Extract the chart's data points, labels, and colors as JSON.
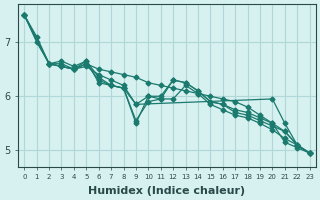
{
  "background_color": "#d7f0f0",
  "grid_color": "#b0d8d8",
  "line_color": "#1a7a6e",
  "xlabel": "Humidex (Indice chaleur)",
  "xlabel_fontsize": 8,
  "yticks": [
    5,
    6,
    7
  ],
  "ylim": [
    4.7,
    7.7
  ],
  "xlim": [
    -0.5,
    23.5
  ],
  "xtick_labels": [
    "0",
    "1",
    "2",
    "3",
    "4",
    "5",
    "6",
    "7",
    "8",
    "9",
    "10",
    "11",
    "12",
    "13",
    "14",
    "15",
    "16",
    "17",
    "18",
    "19",
    "20",
    "21",
    "22",
    "23"
  ],
  "series": [
    {
      "x": [
        0,
        1,
        2,
        3,
        4,
        5,
        6,
        7,
        8,
        9,
        10,
        11,
        12,
        13,
        14,
        15,
        16,
        17,
        18,
        19,
        20,
        21,
        22,
        23
      ],
      "y": [
        7.5,
        7.1,
        6.6,
        6.55,
        6.5,
        6.6,
        6.3,
        6.2,
        6.15,
        5.55,
        5.9,
        5.95,
        6.3,
        6.25,
        6.1,
        5.9,
        5.85,
        5.75,
        5.7,
        5.6,
        5.5,
        5.15,
        5.05,
        4.95
      ]
    },
    {
      "x": [
        0,
        1,
        2,
        3,
        4,
        5,
        6,
        7,
        8,
        9,
        10,
        11,
        12,
        13,
        14,
        15,
        16,
        17,
        18,
        19,
        20,
        21,
        22,
        23
      ],
      "y": [
        7.5,
        7.0,
        6.6,
        6.65,
        6.55,
        6.65,
        6.25,
        6.2,
        6.15,
        5.85,
        6.0,
        6.0,
        6.3,
        6.25,
        6.1,
        5.9,
        5.85,
        5.7,
        5.65,
        5.55,
        5.45,
        5.35,
        5.1,
        4.95
      ]
    },
    {
      "x": [
        0,
        2,
        3,
        4,
        5,
        6,
        7,
        8,
        9,
        10,
        11,
        12,
        13,
        14,
        15,
        16,
        17,
        18,
        19,
        20,
        21,
        22,
        23
      ],
      "y": [
        7.5,
        6.6,
        6.6,
        6.5,
        6.65,
        6.35,
        6.2,
        6.15,
        5.5,
        6.0,
        5.95,
        5.95,
        6.2,
        6.05,
        5.85,
        5.75,
        5.65,
        5.6,
        5.5,
        5.38,
        5.22,
        5.1,
        4.95
      ]
    },
    {
      "x": [
        0,
        2,
        3,
        4,
        5,
        6,
        7,
        8,
        9,
        10,
        11,
        12,
        13,
        14,
        15,
        16,
        17,
        18,
        19,
        20,
        21,
        22,
        23
      ],
      "y": [
        7.5,
        6.6,
        6.55,
        6.5,
        6.6,
        6.5,
        6.45,
        6.4,
        6.35,
        6.25,
        6.2,
        6.15,
        6.1,
        6.05,
        6.0,
        5.95,
        5.9,
        5.8,
        5.65,
        5.5,
        5.35,
        5.1,
        4.95
      ]
    },
    {
      "x": [
        0,
        2,
        3,
        4,
        5,
        6,
        7,
        8,
        9,
        20,
        21,
        22,
        23
      ],
      "y": [
        7.5,
        6.6,
        6.55,
        6.5,
        6.55,
        6.4,
        6.3,
        6.2,
        5.85,
        5.95,
        5.5,
        5.1,
        4.95
      ]
    }
  ]
}
